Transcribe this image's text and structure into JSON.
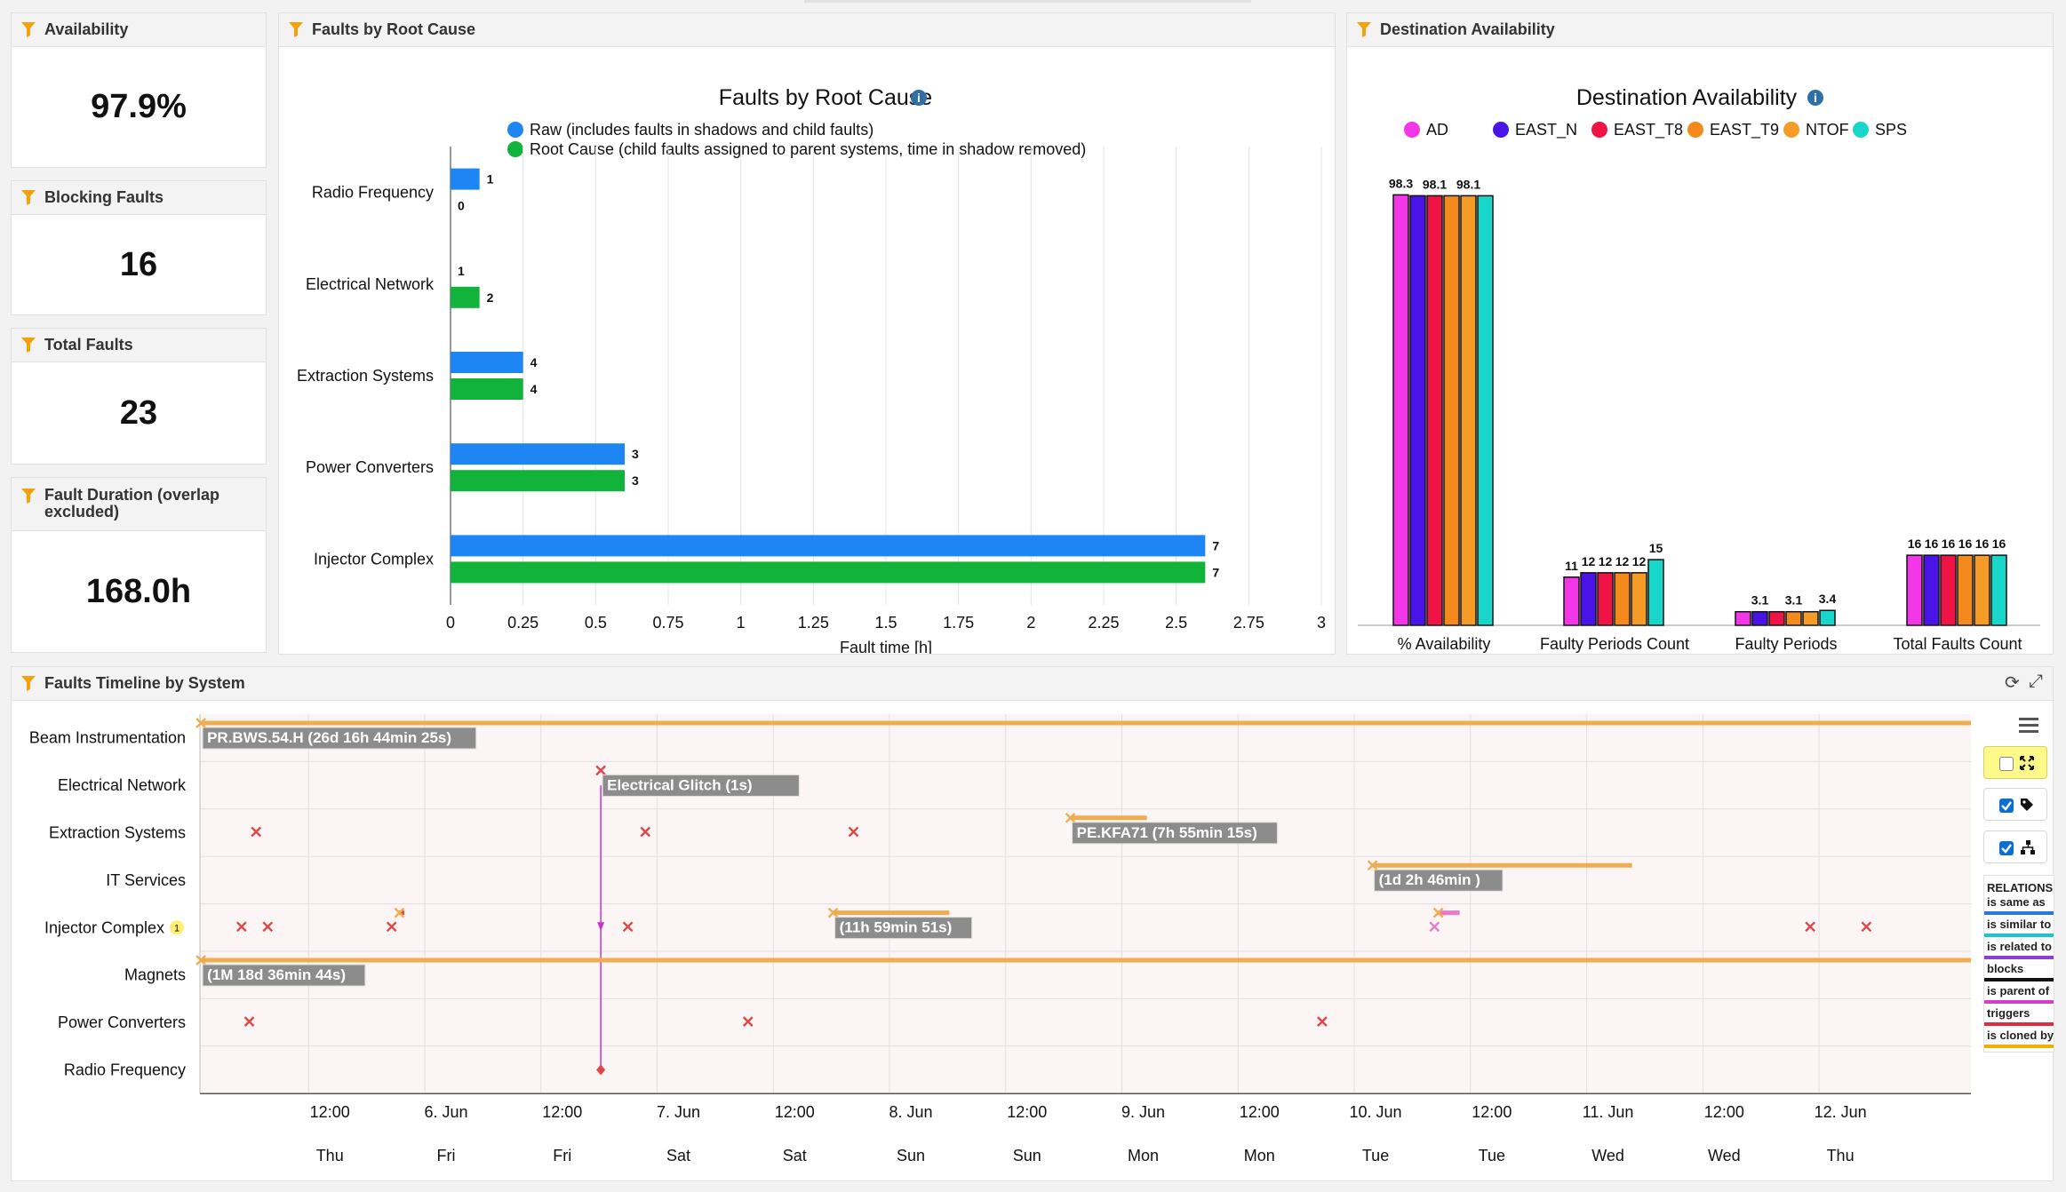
{
  "kpis": [
    {
      "title": "Availability",
      "value": "97.9%"
    },
    {
      "title": "Blocking Faults",
      "value": "16"
    },
    {
      "title": "Total Faults",
      "value": "23"
    },
    {
      "title": "Fault Duration (overlap excluded)",
      "value": "168.0h"
    }
  ],
  "colors": {
    "raw": "#1e85f5",
    "root": "#12b33a",
    "funnel": "#f4a20c",
    "timeline_bar": "#efad4f",
    "fault_x": "#e04646",
    "link": "#cc33cc"
  },
  "root_cause_panel": {
    "header": "Faults by Root Cause"
  },
  "root_cause_chart": {
    "type": "bar",
    "orientation": "horizontal",
    "title": "Faults by Root Cause",
    "xlabel": "Fault time [h]",
    "xlim": [
      0,
      3
    ],
    "xticks": [
      "0",
      "0.25",
      "0.5",
      "0.75",
      "1",
      "1.25",
      "1.5",
      "1.75",
      "2",
      "2.25",
      "2.5",
      "2.75",
      "3"
    ],
    "categories": [
      "Radio Frequency",
      "Electrical Network",
      "Extraction Systems",
      "Power Converters",
      "Injector Complex"
    ],
    "series": [
      {
        "name": "Raw (includes faults in shadows and child faults)",
        "color": "#1e85f5",
        "values": [
          0.1,
          0.0,
          0.25,
          0.6,
          2.6
        ],
        "labels": [
          "1",
          "1",
          "4",
          "3",
          "7"
        ]
      },
      {
        "name": "Root Cause (child faults assigned to parent systems, time in shadow removed)",
        "color": "#12b33a",
        "values": [
          0.0,
          0.1,
          0.25,
          0.6,
          2.6
        ],
        "labels": [
          "0",
          "2",
          "4",
          "3",
          "7"
        ]
      }
    ]
  },
  "dest_panel": {
    "header": "Destination Availability"
  },
  "dest_chart": {
    "type": "bar",
    "title": "Destination Availability",
    "categories": [
      "% Availability",
      "Faulty Periods Count",
      "Faulty Periods\nDuration (hours)",
      "Total Faults Count"
    ],
    "series": [
      {
        "name": "AD",
        "color": "#f236e8",
        "values": [
          98.3,
          11,
          3.1,
          16
        ],
        "labels": [
          "98.3",
          "11",
          "",
          "16"
        ]
      },
      {
        "name": "EAST_N",
        "color": "#4a14e8",
        "values": [
          98.1,
          12,
          3.1,
          16
        ],
        "labels": [
          "",
          "12",
          "3.1",
          "16"
        ]
      },
      {
        "name": "EAST_T8",
        "color": "#f01446",
        "values": [
          98.1,
          12,
          3.1,
          16
        ],
        "labels": [
          "98.1",
          "12",
          "",
          "16"
        ]
      },
      {
        "name": "EAST_T9",
        "color": "#f48a1c",
        "values": [
          98.1,
          12,
          3.1,
          16
        ],
        "labels": [
          "",
          "12",
          "3.1",
          "16"
        ]
      },
      {
        "name": "NTOF",
        "color": "#f59b28",
        "values": [
          98.1,
          12,
          3.1,
          16
        ],
        "labels": [
          "98.1",
          "12",
          "",
          "16"
        ]
      },
      {
        "name": "SPS",
        "color": "#18d6c9",
        "values": [
          98.1,
          15,
          3.4,
          16
        ],
        "labels": [
          "",
          "15",
          "3.4",
          "16"
        ]
      }
    ]
  },
  "timeline_panel": {
    "header": "Faults Timeline by System"
  },
  "timeline": {
    "rows": [
      {
        "label": "Beam Instrumentation",
        "badge": ""
      },
      {
        "label": "Electrical Network",
        "badge": ""
      },
      {
        "label": "Extraction Systems",
        "badge": ""
      },
      {
        "label": "IT Services",
        "badge": ""
      },
      {
        "label": "Injector Complex",
        "badge": "1"
      },
      {
        "label": "Magnets",
        "badge": ""
      },
      {
        "label": "Power Converters",
        "badge": ""
      },
      {
        "label": "Radio Frequency",
        "badge": ""
      }
    ],
    "axis_start_hours": -12.5,
    "axis_end_hours": 170.4,
    "ticks": [
      {
        "t": 0,
        "top": "12:00",
        "bottom": "Thu"
      },
      {
        "t": 12,
        "top": "6. Jun",
        "bottom": "Fri"
      },
      {
        "t": 24,
        "top": "12:00",
        "bottom": "Fri"
      },
      {
        "t": 36,
        "top": "7. Jun",
        "bottom": "Sat"
      },
      {
        "t": 48,
        "top": "12:00",
        "bottom": "Sat"
      },
      {
        "t": 60,
        "top": "8. Jun",
        "bottom": "Sun"
      },
      {
        "t": 72,
        "top": "12:00",
        "bottom": "Sun"
      },
      {
        "t": 84,
        "top": "9. Jun",
        "bottom": "Mon"
      },
      {
        "t": 96,
        "top": "12:00",
        "bottom": "Mon"
      },
      {
        "t": 108,
        "top": "10. Jun",
        "bottom": "Tue"
      },
      {
        "t": 120,
        "top": "12:00",
        "bottom": "Tue"
      },
      {
        "t": 132,
        "top": "11. Jun",
        "bottom": "Wed"
      },
      {
        "t": 144,
        "top": "12:00",
        "bottom": "Wed"
      },
      {
        "t": 156,
        "top": "12. Jun",
        "bottom": "Thu"
      }
    ],
    "bars": [
      {
        "row": 0,
        "start": -12.4,
        "end": 170.4,
        "label": "PR.BWS.54.H (26d 16h 44min 25s)"
      },
      {
        "row": 5,
        "start": -12.4,
        "end": 170.4,
        "label": "(1M 18d 36min 44s)"
      },
      {
        "row": 2,
        "start": 77.4,
        "end": 85.3,
        "label": "PE.KFA71 (7h 55min 15s)"
      },
      {
        "row": 3,
        "start": 108.6,
        "end": 135.4,
        "label": "(1d 2h 46min )"
      },
      {
        "row": 4,
        "start": 52.9,
        "end": 64.9,
        "label": "(11h 59min 51s)"
      },
      {
        "row": 4,
        "start": 8.1,
        "end": 8.6,
        "label": ""
      },
      {
        "row": 4,
        "start": 115.4,
        "end": 117.6,
        "label": ""
      }
    ],
    "markers": [
      {
        "row": 1,
        "t": 28.9,
        "label": "Electrical Glitch (1s)"
      },
      {
        "row": 2,
        "t": -6.7,
        "label": ""
      },
      {
        "row": 2,
        "t": 33.5,
        "label": ""
      },
      {
        "row": 2,
        "t": 55.0,
        "label": ""
      },
      {
        "row": 4,
        "t": -8.2,
        "label": ""
      },
      {
        "row": 4,
        "t": -5.5,
        "label": ""
      },
      {
        "row": 4,
        "t": 7.3,
        "label": ""
      },
      {
        "row": 4,
        "t": 31.7,
        "label": ""
      },
      {
        "row": 4,
        "t": 115.0,
        "label": ""
      },
      {
        "row": 4,
        "t": 153.8,
        "label": ""
      },
      {
        "row": 4,
        "t": 159.6,
        "label": ""
      },
      {
        "row": 6,
        "t": -7.4,
        "label": ""
      },
      {
        "row": 6,
        "t": 44.1,
        "label": ""
      },
      {
        "row": 6,
        "t": 103.4,
        "label": ""
      }
    ]
  },
  "relations": {
    "title": "RELATIONS",
    "items": [
      {
        "label": "is same as",
        "color": "#2b7bd6"
      },
      {
        "label": "is similar to",
        "color": "#18c6d6"
      },
      {
        "label": "is related to",
        "color": "#8a3fd0"
      },
      {
        "label": "blocks",
        "color": "#111111"
      },
      {
        "label": "is parent of",
        "color": "#d43fc8"
      },
      {
        "label": "triggers",
        "color": "#e02c3c"
      },
      {
        "label": "is cloned by",
        "color": "#f0b000"
      }
    ]
  },
  "toolbar_icons": [
    "refresh-icon",
    "expand-icon",
    "menu-icon",
    "fit-icon",
    "tag-icon",
    "hierarchy-icon"
  ]
}
